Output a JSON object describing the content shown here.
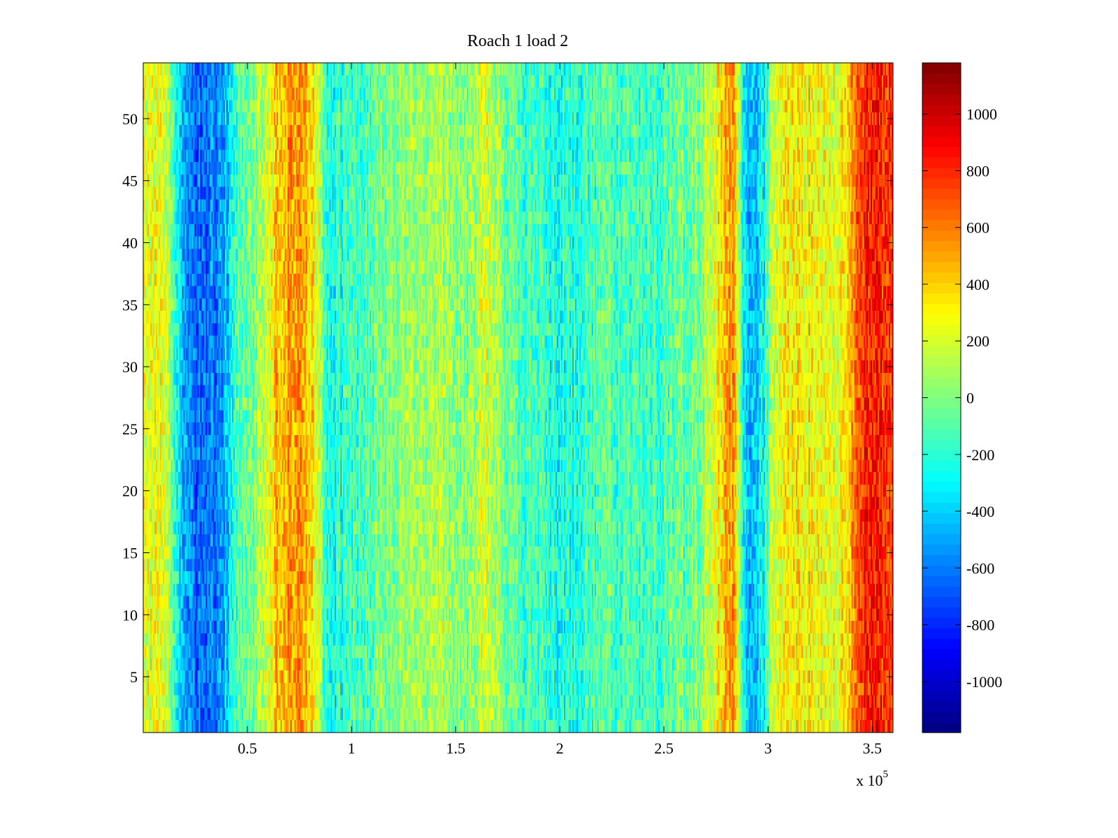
{
  "chart_data": {
    "type": "heatmap",
    "title": "Roach 1 load 2",
    "xlabel": "",
    "ylabel": "",
    "x_multiplier_label": "x 10",
    "x_multiplier_exponent": "5",
    "xlim": [
      0,
      360000
    ],
    "ylim": [
      0.5,
      54.5
    ],
    "x_ticks": [
      {
        "value": 0.5,
        "label": "0.5"
      },
      {
        "value": 1,
        "label": "1"
      },
      {
        "value": 1.5,
        "label": "1.5"
      },
      {
        "value": 2,
        "label": "2"
      },
      {
        "value": 2.5,
        "label": "2.5"
      },
      {
        "value": 3,
        "label": "3"
      },
      {
        "value": 3.5,
        "label": "3.5"
      }
    ],
    "y_ticks": [
      {
        "value": 5,
        "label": "5"
      },
      {
        "value": 10,
        "label": "10"
      },
      {
        "value": 15,
        "label": "15"
      },
      {
        "value": 20,
        "label": "20"
      },
      {
        "value": 25,
        "label": "25"
      },
      {
        "value": 30,
        "label": "30"
      },
      {
        "value": 35,
        "label": "35"
      },
      {
        "value": 40,
        "label": "40"
      },
      {
        "value": 45,
        "label": "45"
      },
      {
        "value": 50,
        "label": "50"
      }
    ],
    "rows": 54,
    "color_range": [
      -1180,
      1180
    ],
    "colormap": "jet",
    "colorbar_ticks": [
      {
        "value": 1000,
        "label": "1000"
      },
      {
        "value": 800,
        "label": "800"
      },
      {
        "value": 600,
        "label": "600"
      },
      {
        "value": 400,
        "label": "400"
      },
      {
        "value": 200,
        "label": "200"
      },
      {
        "value": 0,
        "label": "0"
      },
      {
        "value": -200,
        "label": "-200"
      },
      {
        "value": -400,
        "label": "-400"
      },
      {
        "value": -600,
        "label": "-600"
      },
      {
        "value": -800,
        "label": "-800"
      },
      {
        "value": -1000,
        "label": "-1000"
      }
    ],
    "column_profile": [
      {
        "x": 0,
        "v": 250
      },
      {
        "x": 10000,
        "v": 200
      },
      {
        "x": 16000,
        "v": -250
      },
      {
        "x": 22000,
        "v": -600
      },
      {
        "x": 30000,
        "v": -650
      },
      {
        "x": 38000,
        "v": -550
      },
      {
        "x": 44000,
        "v": -150
      },
      {
        "x": 52000,
        "v": 0
      },
      {
        "x": 60000,
        "v": 120
      },
      {
        "x": 64000,
        "v": 450
      },
      {
        "x": 72000,
        "v": 520
      },
      {
        "x": 80000,
        "v": 420
      },
      {
        "x": 85000,
        "v": 150
      },
      {
        "x": 88000,
        "v": -300
      },
      {
        "x": 95000,
        "v": -200
      },
      {
        "x": 110000,
        "v": -80
      },
      {
        "x": 125000,
        "v": 50
      },
      {
        "x": 140000,
        "v": 120
      },
      {
        "x": 155000,
        "v": 30
      },
      {
        "x": 165000,
        "v": 180
      },
      {
        "x": 175000,
        "v": -50
      },
      {
        "x": 190000,
        "v": -180
      },
      {
        "x": 205000,
        "v": -230
      },
      {
        "x": 220000,
        "v": -100
      },
      {
        "x": 235000,
        "v": -130
      },
      {
        "x": 250000,
        "v": -120
      },
      {
        "x": 265000,
        "v": -30
      },
      {
        "x": 274000,
        "v": 200
      },
      {
        "x": 280000,
        "v": 500
      },
      {
        "x": 284000,
        "v": 550
      },
      {
        "x": 288000,
        "v": -300
      },
      {
        "x": 293000,
        "v": -500
      },
      {
        "x": 298000,
        "v": -250
      },
      {
        "x": 304000,
        "v": 300
      },
      {
        "x": 315000,
        "v": 350
      },
      {
        "x": 330000,
        "v": 250
      },
      {
        "x": 337000,
        "v": 350
      },
      {
        "x": 343000,
        "v": 720
      },
      {
        "x": 350000,
        "v": 850
      },
      {
        "x": 360000,
        "v": 780
      }
    ],
    "noise_amplitude": 260
  }
}
